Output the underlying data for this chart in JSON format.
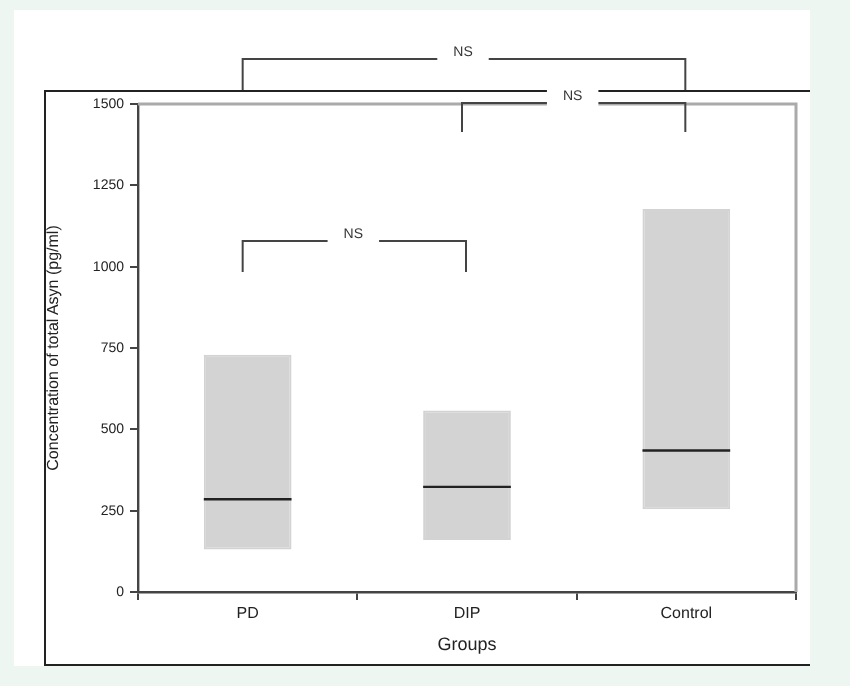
{
  "chart_data": {
    "type": "box",
    "xlabel": "Groups",
    "ylabel": "Concentration of total Asyn (pg/ml)",
    "categories": [
      "PD",
      "DIP",
      "Control"
    ],
    "color": "#d3d3d3",
    "boxes": [
      {
        "low": 131,
        "q1": 131,
        "median": 285,
        "q3": 729,
        "high": 729
      },
      {
        "low": 160,
        "q1": 160,
        "median": 323,
        "q3": 558,
        "high": 558
      },
      {
        "low": 254,
        "q1": 254,
        "median": 435,
        "q3": 1177,
        "high": 1177
      }
    ],
    "ylim": [
      0,
      1500
    ],
    "yticks": [
      0,
      250,
      500,
      750,
      1000,
      1250,
      1500
    ],
    "grid": false,
    "legend": false,
    "annotations": [
      "NS",
      "NS",
      "NS"
    ]
  }
}
